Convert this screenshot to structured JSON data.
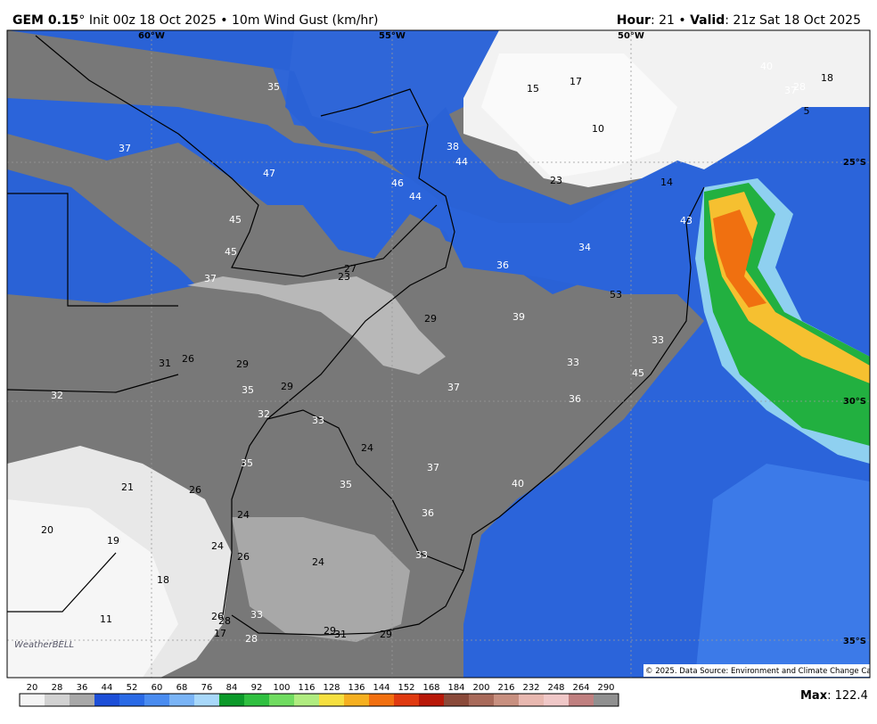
{
  "header": {
    "model": "GEM 0.15",
    "init": "° Init 00z 18 Oct 2025 • 10m Wind Gust (km/hr)",
    "hour_label": "Hour",
    "hour": ": 21 • ",
    "valid_label": "Valid",
    "valid": ": 21z Sat 18 Oct 2025"
  },
  "map": {
    "graticule": [
      "60°W",
      "55°W",
      "50°W",
      "25°S",
      "30°S",
      "35°S"
    ],
    "labels": [
      "35",
      "15",
      "17",
      "40",
      "37",
      "28",
      "18",
      "5",
      "10",
      "37",
      "38",
      "44",
      "47",
      "46",
      "44",
      "23",
      "14",
      "45",
      "43",
      "45",
      "34",
      "27",
      "23",
      "36",
      "37",
      "53",
      "29",
      "39",
      "33",
      "31",
      "26",
      "29",
      "33",
      "45",
      "35",
      "29",
      "37",
      "32",
      "36",
      "32",
      "33",
      "24",
      "35",
      "37",
      "21",
      "26",
      "35",
      "40",
      "24",
      "36",
      "20",
      "19",
      "24",
      "26",
      "33",
      "24",
      "18",
      "11",
      "26",
      "28",
      "33",
      "17",
      "28",
      "29",
      "31",
      "29"
    ],
    "logo": "WeatherBELL",
    "copyright": "© 2025. Data Source: Environment and Climate Change Canada."
  },
  "colorbar": {
    "ticks": [
      "20",
      "28",
      "36",
      "44",
      "52",
      "60",
      "68",
      "76",
      "84",
      "92",
      "100",
      "116",
      "128",
      "136",
      "144",
      "152",
      "168",
      "184",
      "200",
      "216",
      "232",
      "248",
      "264",
      "290"
    ],
    "colors": [
      "#f4f4f4",
      "#d2d2d2",
      "#a8a8a8",
      "#1d4fd8",
      "#2a6ae6",
      "#4a8cf0",
      "#7ab4f6",
      "#a8d8fa",
      "#0c9a2a",
      "#30c040",
      "#70dc60",
      "#b0ec80",
      "#f6e040",
      "#f6b020",
      "#f27010",
      "#e03a10",
      "#b81808",
      "#8a4a3a",
      "#a86a5a",
      "#c89080",
      "#e8b8b0",
      "#f0c8c8",
      "#c08080",
      "#909090"
    ],
    "max_label": "Max",
    "max": ": 122.4"
  }
}
